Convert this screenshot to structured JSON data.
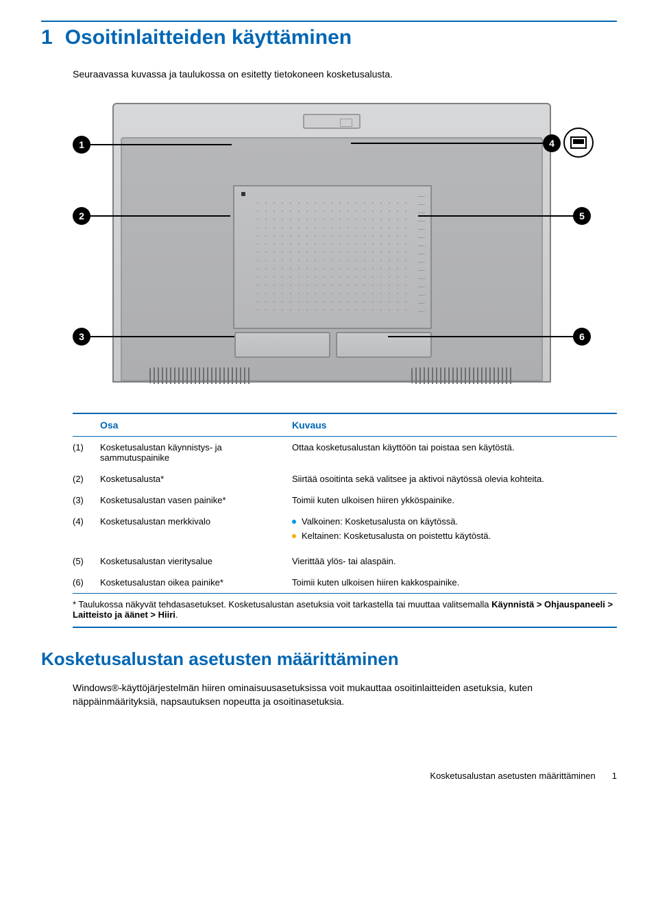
{
  "colors": {
    "accent": "#0066b3",
    "bullet_white": "#0099e5",
    "bullet_yellow": "#f5b100"
  },
  "chapter": {
    "number": "1",
    "title": "Osoitinlaitteiden käyttäminen"
  },
  "intro": "Seuraavassa kuvassa ja taulukossa on esitetty tietokoneen kosketusalusta.",
  "diagram": {
    "callouts": [
      "1",
      "2",
      "3",
      "4",
      "5",
      "6"
    ]
  },
  "table": {
    "headers": {
      "part": "Osa",
      "desc": "Kuvaus"
    },
    "rows": [
      {
        "num": "(1)",
        "name": "Kosketusalustan käynnistys- ja sammutuspainike",
        "desc_plain": "Ottaa kosketusalustan käyttöön tai poistaa sen käytöstä."
      },
      {
        "num": "(2)",
        "name": "Kosketusalusta*",
        "desc_plain": "Siirtää osoitinta sekä valitsee ja aktivoi näytössä olevia kohteita."
      },
      {
        "num": "(3)",
        "name": "Kosketusalustan vasen painike*",
        "desc_plain": "Toimii kuten ulkoisen hiiren ykköspainike."
      },
      {
        "num": "(4)",
        "name": "Kosketusalustan merkkivalo",
        "desc_list": [
          {
            "color": "white",
            "text": "Valkoinen: Kosketusalusta on käytössä."
          },
          {
            "color": "yellow",
            "text": "Keltainen: Kosketusalusta on poistettu käytöstä."
          }
        ]
      },
      {
        "num": "(5)",
        "name": "Kosketusalustan vieritysalue",
        "desc_plain": "Vierittää ylös- tai alaspäin."
      },
      {
        "num": "(6)",
        "name": "Kosketusalustan oikea painike*",
        "desc_plain": "Toimii kuten ulkoisen hiiren kakkospainike."
      }
    ],
    "footnote_pre": "* Taulukossa näkyvät tehdasasetukset. Kosketusalustan asetuksia voit tarkastella tai muuttaa valitsemalla ",
    "footnote_bold": "Käynnistä > Ohjauspaneeli > Laitteisto ja äänet > Hiiri",
    "footnote_post": "."
  },
  "section": {
    "heading": "Kosketusalustan asetusten määrittäminen",
    "body": "Windows®-käyttöjärjestelmän hiiren ominaisuusasetuksissa voit mukauttaa osoitinlaitteiden asetuksia, kuten näppäinmäärityksiä, napsautuksen nopeutta ja osoitinasetuksia."
  },
  "footer": {
    "text": "Kosketusalustan asetusten määrittäminen",
    "page": "1"
  }
}
